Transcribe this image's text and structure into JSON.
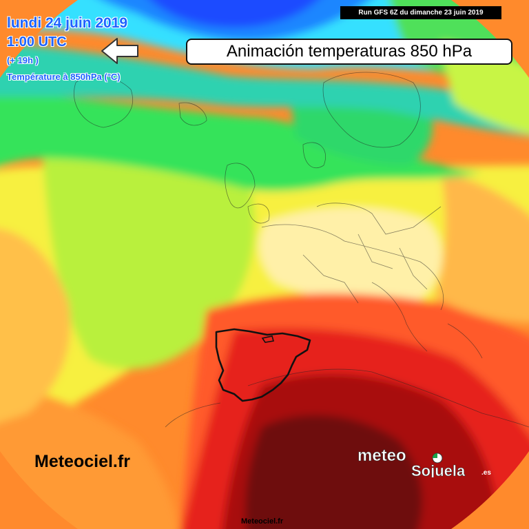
{
  "header": {
    "run_label": "Run GFS 6Z du dimanche 23 juin 2019",
    "title": "Animación temperaturas 850 hPa",
    "date": "lundi 24 juin 2019",
    "time": "1:00 UTC",
    "forecast_offset": "(+ 19h )",
    "field": "Température à 850hPa (°C)"
  },
  "watermarks": {
    "left": "Meteociel.fr",
    "bottom": "Meteociel.fr"
  },
  "logo": {
    "text_top": "meteo",
    "text_bottom": "Sojuela",
    "suffix": ".es"
  },
  "map": {
    "type": "temperature-850hPa",
    "palette": {
      "deep_blue": "#1a4bff",
      "blue": "#1f86ff",
      "cyan": "#35e0ff",
      "teal": "#2ed2b0",
      "green": "#35e35a",
      "lime": "#a8f03a",
      "light_lime": "#c8f545",
      "yellow": "#f7f040",
      "cream": "#fff0a8",
      "orange_light": "#ffb84a",
      "orange": "#ff8a2c",
      "red_orange": "#ff5a2a",
      "red": "#e6221c",
      "dark_red": "#a80d10",
      "maroon": "#6e0a0b"
    },
    "highlighted_region": "Iberian Peninsula"
  }
}
